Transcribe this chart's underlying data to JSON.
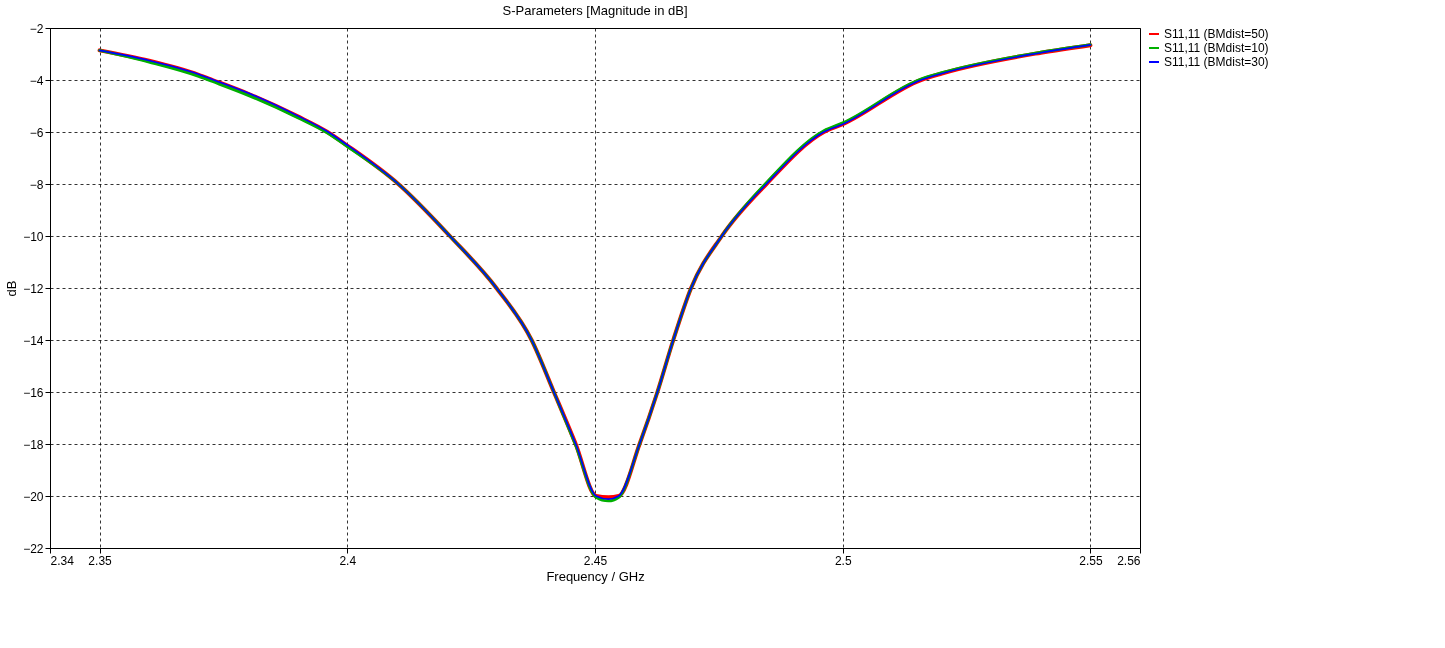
{
  "chart_data": {
    "type": "line",
    "title": "S-Parameters [Magnitude in dB]",
    "xlabel": "Frequency / GHz",
    "ylabel": "dB",
    "x": [
      2.35,
      2.36,
      2.37,
      2.3728,
      2.38,
      2.39,
      2.396,
      2.4,
      2.4103,
      2.4207,
      2.4301,
      2.4372,
      2.4417,
      2.4461,
      2.4502,
      2.4527,
      2.4548,
      2.459,
      2.4626,
      2.4658,
      2.4694,
      2.4756,
      2.4846,
      2.4962,
      2.5,
      2.5158,
      2.52,
      2.54,
      2.55
    ],
    "series": [
      {
        "name": "S11,11 (BMdist=50)",
        "color": "#ff0000",
        "values": [
          -2.86,
          -3.26,
          -3.8,
          -4.0,
          -4.53,
          -5.4,
          -6.0,
          -6.52,
          -8.0,
          -10.0,
          -12.0,
          -14.0,
          -16.0,
          -18.0,
          -20.0,
          -20.05,
          -20.0,
          -18.0,
          -16.0,
          -14.0,
          -12.0,
          -10.0,
          -8.0,
          -6.0,
          -5.7,
          -4.0,
          -3.75,
          -2.95,
          -2.66
        ]
      },
      {
        "name": "S11,11 (BMdist=10)",
        "color": "#00b000",
        "values": [
          -2.86,
          -3.31,
          -3.86,
          -4.06,
          -4.59,
          -5.45,
          -6.04,
          -6.56,
          -8.0,
          -10.0,
          -12.0,
          -14.0,
          -16.0,
          -18.05,
          -20.05,
          -20.19,
          -20.05,
          -18.0,
          -16.0,
          -14.0,
          -12.0,
          -10.0,
          -7.95,
          -5.95,
          -5.65,
          -3.96,
          -3.72,
          -2.93,
          -2.64
        ]
      },
      {
        "name": "S11,11 (BMdist=30)",
        "color": "#0000ff",
        "values": [
          -2.86,
          -3.25,
          -3.78,
          -3.98,
          -4.5,
          -5.38,
          -5.98,
          -6.5,
          -8.0,
          -10.0,
          -12.0,
          -14.0,
          -16.0,
          -18.0,
          -20.0,
          -20.12,
          -20.0,
          -18.0,
          -16.0,
          -14.0,
          -12.0,
          -10.0,
          -8.0,
          -6.0,
          -5.7,
          -4.0,
          -3.75,
          -2.95,
          -2.65
        ]
      }
    ],
    "xlim": [
      2.34,
      2.56
    ],
    "xticks": [
      2.34,
      2.35,
      2.4,
      2.45,
      2.5,
      2.55,
      2.56
    ],
    "ylim": [
      -22,
      -2
    ],
    "yticks": [
      -22,
      -20,
      -18,
      -16,
      -14,
      -12,
      -10,
      -8,
      -6,
      -4,
      -2
    ],
    "grid": true,
    "legend": "top right",
    "marker": "none",
    "line_style": "solid"
  }
}
